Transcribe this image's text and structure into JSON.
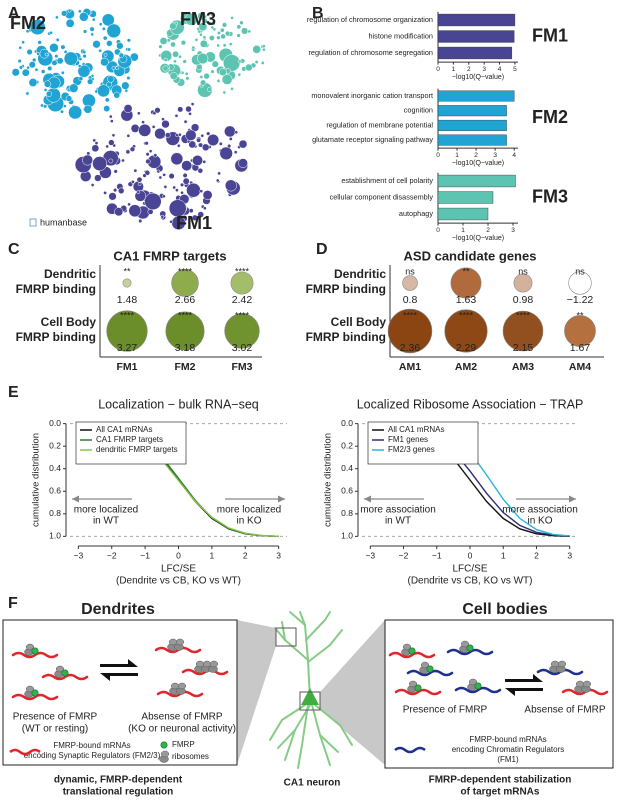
{
  "panel_labels": [
    "A",
    "B",
    "C",
    "D",
    "E",
    "F"
  ],
  "network": {
    "modules": [
      "FM2",
      "FM3",
      "FM1"
    ],
    "colors": [
      "#1fa4d4",
      "#5ec4b2",
      "#4a4494"
    ],
    "source": "humanbase"
  },
  "chart_data": [
    {
      "type": "hbar",
      "title": "FM1",
      "color": "#4a4494",
      "categories": [
        "regulation of chromosome organization",
        "histone modification",
        "regulation of chromosome segregation"
      ],
      "values": [
        5.0,
        4.95,
        4.8
      ],
      "xlabel": "−log10(Q−value)",
      "xlim": [
        0,
        5.2
      ],
      "xticks": [
        0,
        1,
        2,
        3,
        4,
        5
      ]
    },
    {
      "type": "hbar",
      "title": "FM2",
      "color": "#1fa4d4",
      "categories": [
        "monovalent inorganic cation transport",
        "cognition",
        "regulation of membrane potential",
        "glutamate receptor signaling pathway"
      ],
      "values": [
        4.0,
        3.6,
        3.6,
        3.6
      ],
      "xlabel": "−log10(Q−value)",
      "xlim": [
        0,
        4.2
      ],
      "xticks": [
        0,
        1,
        2,
        3,
        4
      ]
    },
    {
      "type": "hbar",
      "title": "FM3",
      "color": "#5ec4b2",
      "categories": [
        "establishment of cell polarity",
        "cellular component disassembly",
        "autophagy"
      ],
      "values": [
        3.1,
        2.2,
        2.0
      ],
      "xlabel": "−log10(Q−value)",
      "xlim": [
        0,
        3.2
      ],
      "xticks": [
        0,
        1,
        2,
        3
      ]
    },
    {
      "type": "dot",
      "title": "CA1 FMRP targets",
      "categories": [
        "FM1",
        "FM2",
        "FM3"
      ],
      "series": [
        {
          "name": [
            "Dendritic",
            "FMRP binding"
          ],
          "colors": [
            "#c2d39a",
            "#8fac4c",
            "#a3bd6a"
          ],
          "values": [
            1.48,
            2.66,
            2.42
          ],
          "significance": [
            "**",
            "****",
            "****"
          ]
        },
        {
          "name": [
            "Cell Body",
            "FMRP binding"
          ],
          "colors": [
            "#6b8e2a",
            "#6b8e2a",
            "#70922f"
          ],
          "values": [
            3.27,
            3.18,
            3.02
          ],
          "significance": [
            "****",
            "****",
            "****"
          ]
        }
      ]
    },
    {
      "type": "dot",
      "title": "ASD candidate genes",
      "categories": [
        "AM1",
        "AM2",
        "AM3",
        "AM4"
      ],
      "series": [
        {
          "name": [
            "Dendritic",
            "FMRP binding"
          ],
          "colors": [
            "#d7b8a4",
            "#b06a3c",
            "#d4b19c",
            "#ffffff"
          ],
          "values": [
            0.8,
            1.63,
            0.98,
            -1.22
          ],
          "value_labels": [
            "0.8",
            "1.63",
            "0.98",
            "−1.22"
          ],
          "significance": [
            "ns",
            "**",
            "ns",
            "ns"
          ]
        },
        {
          "name": [
            "Cell Body",
            "FMRP binding"
          ],
          "colors": [
            "#8b4513",
            "#8d4816",
            "#925020",
            "#b4703e"
          ],
          "values": [
            2.36,
            2.29,
            2.15,
            1.67
          ],
          "significance": [
            "****",
            "****",
            "****",
            "**"
          ]
        }
      ]
    },
    {
      "type": "line",
      "title": "Localization − bulk RNA−seq",
      "legend": "top-left",
      "x": [
        -3,
        -2.5,
        -2,
        -1.5,
        -1,
        -0.5,
        0,
        0.5,
        1,
        1.5,
        2,
        2.5,
        3
      ],
      "series": [
        {
          "name": "All CA1 mRNAs",
          "color": "#111111",
          "values": [
            0.001,
            0.006,
            0.023,
            0.067,
            0.159,
            0.309,
            0.5,
            0.691,
            0.841,
            0.933,
            0.977,
            0.994,
            0.999
          ]
        },
        {
          "name": "CA1 FMRP targets",
          "color": "#2e7d32",
          "values": [
            0.001,
            0.005,
            0.02,
            0.06,
            0.148,
            0.295,
            0.485,
            0.68,
            0.835,
            0.93,
            0.976,
            0.994,
            0.999
          ]
        },
        {
          "name": "dendritic FMRP targets",
          "color": "#8bc34a",
          "values": [
            0.002,
            0.008,
            0.028,
            0.075,
            0.17,
            0.32,
            0.505,
            0.69,
            0.83,
            0.925,
            0.972,
            0.992,
            0.999
          ]
        }
      ],
      "xlabel": [
        "LFC/SE",
        "(Dendrite vs CB, KO vs WT)"
      ],
      "ylabel": "cumulative distribution",
      "xlim": [
        -3.25,
        3.25
      ],
      "ylim": [
        1.05,
        -0.05
      ],
      "xticks": [
        {
          "value": -3,
          "label": "−3"
        },
        {
          "value": -2,
          "label": "−2"
        },
        {
          "value": -1,
          "label": "−1"
        },
        0,
        1,
        2,
        3
      ],
      "yticks": [
        {
          "value": 0,
          "label": "0.0"
        },
        {
          "value": 0.2,
          "label": "0.2"
        },
        {
          "value": 0.4,
          "label": "0.4"
        },
        {
          "value": 0.6,
          "label": "0.6"
        },
        {
          "value": 0.8,
          "label": "0.8"
        },
        {
          "value": 1,
          "label": "1.0"
        }
      ],
      "annotations": [
        [
          "more localized",
          "in WT"
        ],
        [
          "more localized",
          "in KO"
        ]
      ]
    },
    {
      "type": "line",
      "title": "Localized Ribosome Association − TRAP",
      "legend": "top-left",
      "x": [
        -3,
        -2.5,
        -2,
        -1.5,
        -1,
        -0.5,
        0,
        0.5,
        1,
        1.5,
        2,
        2.5,
        3
      ],
      "series": [
        {
          "name": "All CA1 mRNAs",
          "color": "#111111",
          "values": [
            0.001,
            0.006,
            0.023,
            0.067,
            0.159,
            0.309,
            0.5,
            0.691,
            0.841,
            0.933,
            0.977,
            0.994,
            0.999
          ]
        },
        {
          "name": "FM1 genes",
          "color": "#2c2c7a",
          "values": [
            0.001,
            0.003,
            0.014,
            0.045,
            0.115,
            0.242,
            0.421,
            0.618,
            0.788,
            0.903,
            0.964,
            0.989,
            0.997
          ]
        },
        {
          "name": "FM2/3 genes",
          "color": "#29b6d6",
          "values": [
            0.0,
            0.0,
            0.002,
            0.01,
            0.038,
            0.111,
            0.252,
            0.456,
            0.67,
            0.841,
            0.94,
            0.983,
            0.996
          ]
        }
      ],
      "xlabel": [
        "LFC/SE",
        "(Dendrite vs CB, KO vs WT)"
      ],
      "ylabel": "cumulative distribution",
      "xlim": [
        -3.25,
        3.25
      ],
      "ylim": [
        1.05,
        -0.05
      ],
      "xticks": [
        {
          "value": -3,
          "label": "−3"
        },
        {
          "value": -2,
          "label": "−2"
        },
        {
          "value": -1,
          "label": "−1"
        },
        0,
        1,
        2,
        3
      ],
      "yticks": [
        {
          "value": 0,
          "label": "0.0"
        },
        {
          "value": 0.2,
          "label": "0.2"
        },
        {
          "value": 0.4,
          "label": "0.4"
        },
        {
          "value": 0.6,
          "label": "0.6"
        },
        {
          "value": 0.8,
          "label": "0.8"
        },
        {
          "value": 1,
          "label": "1.0"
        }
      ],
      "annotations": [
        [
          "more association",
          "in WT"
        ],
        [
          "more association",
          "in KO"
        ]
      ]
    }
  ],
  "diagram": {
    "dendrites": {
      "title": "Dendrites",
      "presence": [
        "Presence of FMRP",
        "(WT or resting)"
      ],
      "absence": [
        "Absense of FMRP",
        "(KO or neuronal activity)"
      ],
      "legend_mrna": [
        "FMRP-bound mRNAs",
        "encoding Synaptic Regulators (FM2/3)"
      ],
      "legend_fmrp": "FMRP",
      "legend_ribosomes": "ribosomes",
      "caption": [
        "dynamic, FMRP-dependent",
        "translational regulation"
      ]
    },
    "neuron": "CA1 neuron",
    "cell_bodies": {
      "title": "Cell bodies",
      "presence": "Presence of FMRP",
      "absence": "Absense of FMRP",
      "legend_mrna": [
        "FMRP-bound mRNAs",
        "encoding Chromatin Regulators",
        "(FM1)"
      ],
      "caption": [
        "FMRP-dependent stabilization",
        "of target mRNAs"
      ]
    }
  }
}
